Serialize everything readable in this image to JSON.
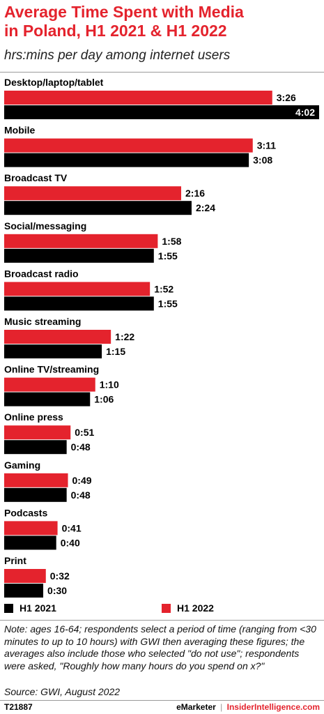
{
  "header": {
    "title_line1": "Average Time Spent with Media",
    "title_line2": "in Poland, H1 2021 & H1 2022",
    "subtitle": "hrs:mins per day among internet users"
  },
  "colors": {
    "h1_2022": "#e4232d",
    "h1_2021": "#000000",
    "title": "#e4232d"
  },
  "chart_data": {
    "type": "bar",
    "orientation": "horizontal",
    "unit": "hrs:mins per day",
    "categories": [
      "Desktop/laptop/tablet",
      "Mobile",
      "Broadcast TV",
      "Social/messaging",
      "Broadcast radio",
      "Music streaming",
      "Online TV/streaming",
      "Online press",
      "Gaming",
      "Podcasts",
      "Print"
    ],
    "series": [
      {
        "name": "H1 2022",
        "color": "#e4232d",
        "minutes": [
          206,
          191,
          136,
          118,
          112,
          82,
          70,
          51,
          49,
          41,
          32
        ],
        "labels": [
          "3:26",
          "3:11",
          "2:16",
          "1:58",
          "1:52",
          "1:22",
          "1:10",
          "0:51",
          "0:49",
          "0:41",
          "0:32"
        ]
      },
      {
        "name": "H1 2021",
        "color": "#000000",
        "minutes": [
          242,
          188,
          144,
          115,
          115,
          75,
          66,
          48,
          48,
          40,
          30
        ],
        "labels": [
          "4:02",
          "3:08",
          "2:24",
          "1:55",
          "1:55",
          "1:15",
          "1:06",
          "0:48",
          "0:48",
          "0:40",
          "0:30"
        ]
      }
    ],
    "xlim": [
      0,
      242
    ],
    "grid": false,
    "legend_position": "bottom"
  },
  "legend": {
    "items": [
      {
        "label": "H1 2021",
        "color": "#000000"
      },
      {
        "label": "H1 2022",
        "color": "#e4232d"
      }
    ]
  },
  "notes": {
    "note": "Note: ages 16-64; respondents select a period of time (ranging from <30 minutes to up to 10 hours) with GWI then averaging these figures; the averages also include those who selected \"do not use\"; respondents were asked, \"Roughly how many hours do you spend on x?\"",
    "source": "Source:  GWI, August 2022"
  },
  "footer": {
    "chart_id": "T21887",
    "brand_emarketer": "eMarketer",
    "brand_separator": "|",
    "brand_ii": "InsiderIntelligence.com"
  }
}
